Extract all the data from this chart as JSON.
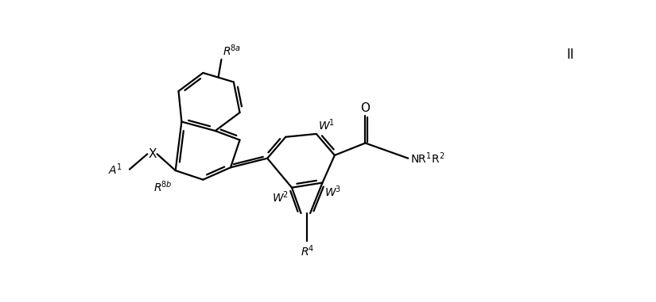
{
  "background_color": "#ffffff",
  "line_color": "#000000",
  "line_width": 1.6,
  "fig_width": 8.25,
  "fig_height": 3.81,
  "dpi": 100,
  "label_II": "II"
}
